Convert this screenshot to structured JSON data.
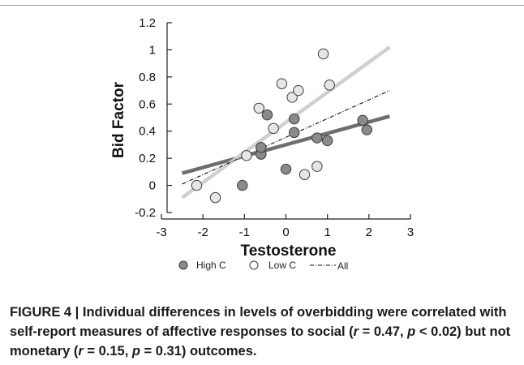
{
  "chart_data": {
    "type": "scatter",
    "xlabel": "Testosterone",
    "ylabel": "Bid Factor",
    "xlim": [
      -3,
      3
    ],
    "ylim": [
      -0.2,
      1.2
    ],
    "xticks": [
      -3,
      -2,
      -1,
      0,
      1,
      2,
      3
    ],
    "yticks": [
      -0.2,
      0,
      0.2,
      0.4,
      0.6,
      0.8,
      1,
      1.2
    ],
    "xtick_labels": [
      "-3",
      "-2",
      "-1",
      "0",
      "1",
      "2",
      "3"
    ],
    "ytick_labels": [
      "-0.2",
      "0",
      "0.2",
      "0.4",
      "0.6",
      "0.8",
      "1",
      "1.2"
    ],
    "series": [
      {
        "name": "High C",
        "color": "#8a8a8a",
        "points": [
          {
            "x": -1.05,
            "y": 0.0
          },
          {
            "x": -0.6,
            "y": 0.23
          },
          {
            "x": -0.6,
            "y": 0.28
          },
          {
            "x": -0.45,
            "y": 0.52
          },
          {
            "x": 0.0,
            "y": 0.12
          },
          {
            "x": 0.2,
            "y": 0.49
          },
          {
            "x": 0.2,
            "y": 0.39
          },
          {
            "x": 0.75,
            "y": 0.35
          },
          {
            "x": 1.0,
            "y": 0.33
          },
          {
            "x": 1.85,
            "y": 0.48
          },
          {
            "x": 1.95,
            "y": 0.41
          }
        ]
      },
      {
        "name": "Low C",
        "color": "#e6e6e6",
        "points": [
          {
            "x": -2.15,
            "y": 0.0
          },
          {
            "x": -1.7,
            "y": -0.09
          },
          {
            "x": -0.95,
            "y": 0.22
          },
          {
            "x": -0.65,
            "y": 0.57
          },
          {
            "x": -0.3,
            "y": 0.42
          },
          {
            "x": -0.1,
            "y": 0.75
          },
          {
            "x": 0.15,
            "y": 0.65
          },
          {
            "x": 0.3,
            "y": 0.7
          },
          {
            "x": 0.45,
            "y": 0.08
          },
          {
            "x": 0.75,
            "y": 0.14
          },
          {
            "x": 0.9,
            "y": 0.97
          },
          {
            "x": 1.05,
            "y": 0.74
          }
        ]
      }
    ],
    "trendlines": [
      {
        "name": "High C",
        "color": "#6e6e6e",
        "style": "solid",
        "from": [
          -2.5,
          0.09
        ],
        "to": [
          2.5,
          0.51
        ]
      },
      {
        "name": "Low C",
        "color": "#cfcfcf",
        "style": "solid",
        "from": [
          -2.5,
          -0.09
        ],
        "to": [
          2.5,
          1.02
        ]
      },
      {
        "name": "All",
        "color": "#111111",
        "style": "dash-dot",
        "from": [
          -2.5,
          0.01
        ],
        "to": [
          2.5,
          0.7
        ]
      }
    ],
    "legend": {
      "position": "bottom",
      "entries": [
        {
          "label": "High C",
          "marker": "filled-circle"
        },
        {
          "label": "Low C",
          "marker": "open-circle"
        },
        {
          "label": "All",
          "marker": "dash-dot-line"
        }
      ]
    }
  },
  "caption": {
    "lead": "FIGURE 4 | Individual differences in levels of overbidding were correlated with self-report measures of affective responses to social (",
    "r1_var": "r",
    "r1_val": " = 0.47, ",
    "p1_var": "p",
    "p1_val": " < 0.02) but not monetary (",
    "r2_var": "r",
    "r2_val": " = 0.15, ",
    "p2_var": "p",
    "p2_val": " = 0.31) outcomes."
  }
}
